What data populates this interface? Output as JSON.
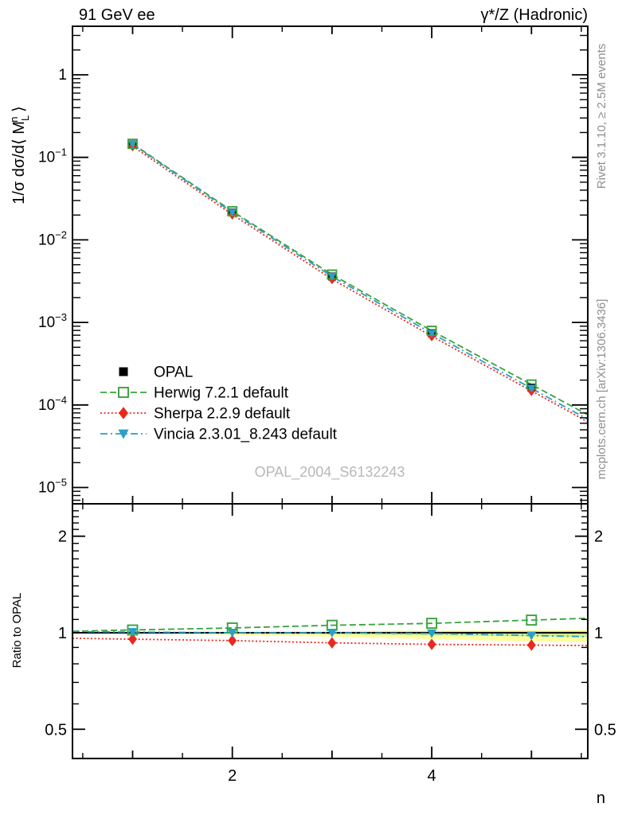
{
  "header": {
    "left_title": "91 GeV ee",
    "right_title": "γ*/Z (Hadronic)"
  },
  "margin_notes": {
    "rivet": "Rivet 3.1.10, ≥ 2.5M events",
    "mcplots": "mcplots.cern.ch [arXiv:1306.3436]"
  },
  "watermark": "OPAL_2004_S6132243",
  "axes": {
    "xlabel": "n",
    "ratio_ylabel": "Ratio to OPAL",
    "main_ylabel_parts": {
      "prefix": "1/σ dσ/d⟨ ",
      "sym": "M",
      "sub": "L",
      "sup": "n",
      "suffix": " ⟩"
    }
  },
  "legend": {
    "items": [
      {
        "label": "OPAL",
        "marker": "square-filled",
        "color": "#000000",
        "line": "none"
      },
      {
        "label": "Herwig 7.2.1 default",
        "marker": "square-open",
        "color": "#3aa33c",
        "line": "dash"
      },
      {
        "label": "Sherpa 2.2.9 default",
        "marker": "diamond-filled",
        "color": "#e8291c",
        "line": "dot"
      },
      {
        "label": "Vincia 2.3.01_8.243 default",
        "marker": "triangle-down-filled",
        "color": "#29a0c6",
        "line": "dashdot"
      }
    ]
  },
  "chart_data": {
    "type": "line",
    "title": "91 GeV ee — γ*/Z (Hadronic)",
    "xlabel": "n",
    "xlim": [
      0.4,
      5.57
    ],
    "x": [
      1,
      2,
      3,
      4,
      5
    ],
    "xticks_labeled": [
      2,
      4
    ],
    "xticks_minor": [
      0.5,
      1,
      1.5,
      2.5,
      3,
      3.5,
      4.5,
      5,
      5.5
    ],
    "main_panel": {
      "ylabel": "1/σ dσ/d⟨M_L^n⟩",
      "yscale": "log",
      "ylim": [
        6.3e-06,
        3.9
      ],
      "ytick_labels": [
        {
          "base": "1",
          "exp": "",
          "value": 1
        },
        {
          "base": "10",
          "exp": "−1",
          "value": 0.1
        },
        {
          "base": "10",
          "exp": "−2",
          "value": 0.01
        },
        {
          "base": "10",
          "exp": "−3",
          "value": 0.001
        },
        {
          "base": "10",
          "exp": "−4",
          "value": 0.0001
        },
        {
          "base": "10",
          "exp": "−5",
          "value": 1e-05
        }
      ],
      "series": [
        {
          "name": "OPAL",
          "values": [
            0.143,
            0.0215,
            0.0036,
            0.00074,
            0.000162
          ]
        },
        {
          "name": "Herwig 7.2.1 default",
          "values": [
            0.1459,
            0.02225,
            0.0038,
            0.000792,
            0.000177
          ]
        },
        {
          "name": "Sherpa 2.2.9 default",
          "values": [
            0.1366,
            0.02032,
            0.00335,
            0.000681,
            0.000148
          ]
        },
        {
          "name": "Vincia 2.3.01_8.243 default",
          "values": [
            0.1437,
            0.0215,
            0.0036,
            0.000736,
            0.000159
          ]
        }
      ]
    },
    "ratio_panel": {
      "ylabel": "Ratio to OPAL",
      "yscale": "log",
      "ylim": [
        0.41,
        2.52
      ],
      "yticks": [
        0.5,
        1,
        2
      ],
      "reference": 1,
      "series": [
        {
          "name": "Herwig 7.2.1 default",
          "values": [
            1.02,
            1.035,
            1.055,
            1.07,
            1.095
          ]
        },
        {
          "name": "Sherpa 2.2.9 default",
          "values": [
            0.955,
            0.945,
            0.93,
            0.92,
            0.915
          ]
        },
        {
          "name": "Vincia 2.3.01_8.243 default",
          "values": [
            1.005,
            1.0,
            1.0,
            0.995,
            0.98
          ]
        }
      ],
      "band": {
        "x": [
          0.4,
          1,
          2,
          3,
          4,
          5,
          5.57
        ],
        "outer_top": [
          1.003,
          1.004,
          1.008,
          1.012,
          1.016,
          1.019,
          1.02
        ],
        "outer_bottom": [
          0.997,
          0.995,
          0.985,
          0.972,
          0.955,
          0.94,
          0.935
        ],
        "inner_top": [
          1.002,
          1.002,
          1.004,
          1.006,
          1.009,
          1.011,
          1.012
        ],
        "inner_bottom": [
          0.998,
          0.998,
          0.994,
          0.988,
          0.982,
          0.974,
          0.972
        ],
        "outer_color": "#ffffa0",
        "inner_color": "#cdeb8f"
      }
    }
  }
}
